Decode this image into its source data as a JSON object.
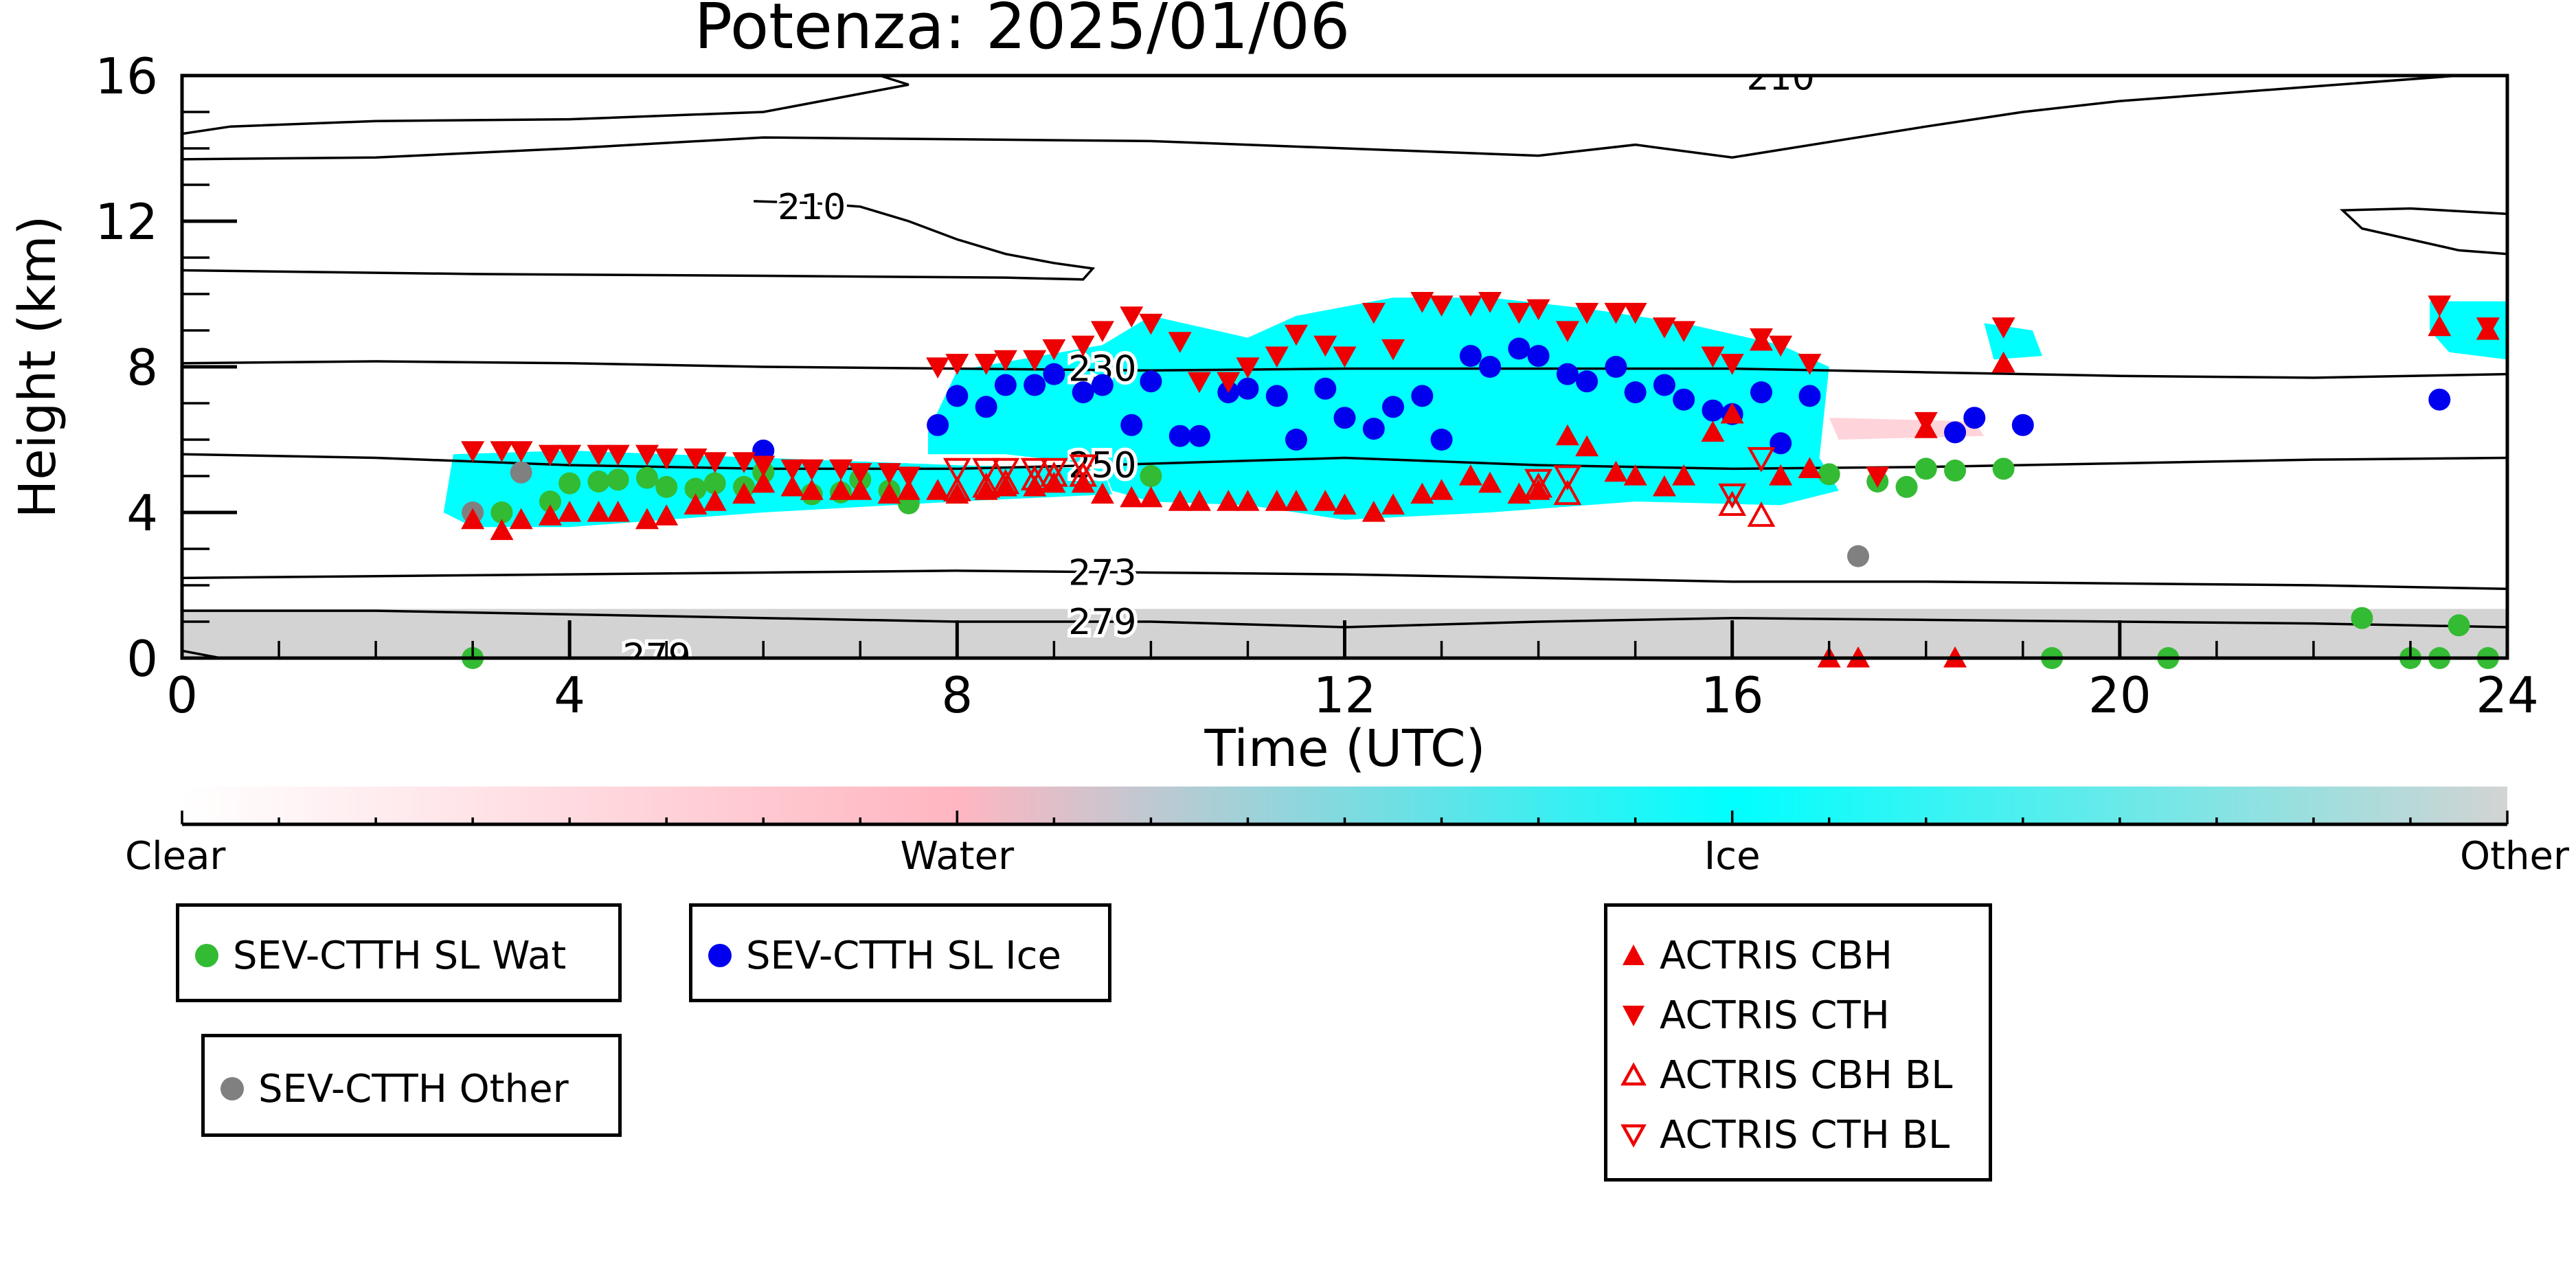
{
  "chart_data": {
    "type": "scatter",
    "title": "Potenza: 2025/01/06",
    "xlabel": "Time (UTC)",
    "ylabel": "Height (km)",
    "xlim": [
      0,
      24
    ],
    "ylim": [
      0,
      16
    ],
    "x_ticks": [
      0,
      4,
      8,
      12,
      16,
      20,
      24
    ],
    "y_ticks": [
      0,
      4,
      8,
      12,
      16
    ],
    "x_tick_labels": [
      "0",
      "4",
      "8",
      "12",
      "16",
      "20",
      "24"
    ],
    "y_tick_labels": [
      "0",
      "4",
      "8",
      "12",
      "16"
    ],
    "colorbar": {
      "labels": [
        "Clear",
        "Water",
        "Ice",
        "Other"
      ],
      "colors": [
        "#ffffff",
        "#ffb6c1",
        "#00ffff",
        "#d3d3d3"
      ]
    },
    "contours": [
      {
        "label": "210",
        "label_at": [
          16.5,
          15.95
        ],
        "points": [
          [
            0,
            14.4
          ],
          [
            0.5,
            14.6
          ],
          [
            2,
            14.75
          ],
          [
            4,
            14.8
          ],
          [
            6,
            15.0
          ],
          [
            7,
            15.5
          ],
          [
            7.5,
            15.75
          ],
          [
            7.2,
            16
          ]
        ]
      },
      {
        "label": "",
        "label_at": null,
        "points": [
          [
            0,
            13.7
          ],
          [
            2,
            13.75
          ],
          [
            4,
            14.0
          ],
          [
            6,
            14.3
          ],
          [
            8,
            14.25
          ],
          [
            10,
            14.2
          ],
          [
            12,
            14.0
          ],
          [
            14,
            13.8
          ],
          [
            15,
            14.1
          ],
          [
            16,
            13.75
          ],
          [
            18,
            14.6
          ],
          [
            19,
            15.0
          ],
          [
            20,
            15.3
          ],
          [
            22,
            15.7
          ],
          [
            23.5,
            16
          ]
        ]
      },
      {
        "label": "210",
        "label_at": [
          6.5,
          12.4
        ],
        "points": [
          [
            5.9,
            12.55
          ],
          [
            6.5,
            12.5
          ],
          [
            7,
            12.4
          ],
          [
            7.5,
            12.0
          ],
          [
            8,
            11.5
          ],
          [
            8.5,
            11.1
          ],
          [
            9,
            10.85
          ],
          [
            9.4,
            10.7
          ],
          [
            9.3,
            10.4
          ],
          [
            8.5,
            10.45
          ],
          [
            6,
            10.5
          ],
          [
            3,
            10.55
          ],
          [
            0,
            10.65
          ]
        ]
      },
      {
        "label": "",
        "label_at": null,
        "points": [
          [
            24,
            12.2
          ],
          [
            23,
            12.35
          ],
          [
            22.3,
            12.3
          ],
          [
            22.5,
            11.8
          ],
          [
            23.5,
            11.2
          ],
          [
            24,
            11.1
          ]
        ]
      },
      {
        "label": "230",
        "label_at": [
          9.5,
          7.95
        ],
        "points": [
          [
            0,
            8.1
          ],
          [
            2,
            8.15
          ],
          [
            4,
            8.1
          ],
          [
            6,
            8.0
          ],
          [
            8,
            7.95
          ],
          [
            10,
            7.9
          ],
          [
            12,
            7.95
          ],
          [
            14,
            7.95
          ],
          [
            16,
            7.95
          ],
          [
            18,
            7.85
          ],
          [
            20,
            7.75
          ],
          [
            22,
            7.7
          ],
          [
            24,
            7.8
          ]
        ]
      },
      {
        "label": "250",
        "label_at": [
          9.5,
          5.3
        ],
        "points": [
          [
            0,
            5.6
          ],
          [
            2,
            5.5
          ],
          [
            4,
            5.3
          ],
          [
            6,
            5.2
          ],
          [
            8,
            5.2
          ],
          [
            9.5,
            5.3
          ],
          [
            12,
            5.5
          ],
          [
            14,
            5.3
          ],
          [
            16,
            5.2
          ],
          [
            18,
            5.25
          ],
          [
            20,
            5.35
          ],
          [
            22,
            5.45
          ],
          [
            24,
            5.5
          ]
        ]
      },
      {
        "label": "273",
        "label_at": [
          9.5,
          2.35
        ],
        "points": [
          [
            0,
            2.2
          ],
          [
            2,
            2.25
          ],
          [
            4,
            2.3
          ],
          [
            6,
            2.35
          ],
          [
            8,
            2.4
          ],
          [
            10,
            2.35
          ],
          [
            12,
            2.3
          ],
          [
            14,
            2.2
          ],
          [
            16,
            2.1
          ],
          [
            18,
            2.1
          ],
          [
            20,
            2.05
          ],
          [
            22,
            2.0
          ],
          [
            24,
            1.9
          ]
        ]
      },
      {
        "label": "279",
        "label_at": [
          9.5,
          1.0
        ],
        "points": [
          [
            0,
            1.3
          ],
          [
            2,
            1.3
          ],
          [
            4,
            1.2
          ],
          [
            6,
            1.1
          ],
          [
            8,
            1.0
          ],
          [
            10,
            1.0
          ],
          [
            12,
            0.85
          ],
          [
            14,
            1.0
          ],
          [
            16,
            1.1
          ],
          [
            18,
            1.05
          ],
          [
            20,
            1.0
          ],
          [
            22,
            0.95
          ],
          [
            24,
            0.85
          ]
        ]
      },
      {
        "label": "279",
        "label_at": [
          4.9,
          0.05
        ],
        "points": [
          [
            0,
            0.2
          ],
          [
            0.2,
            0.1
          ],
          [
            0.4,
            0.0
          ]
        ]
      }
    ],
    "series": [
      {
        "name": "SEV-CTTH SL Wat",
        "marker": "circle",
        "color": "#33bb33",
        "x": [
          3.0,
          3.3,
          3.8,
          4.0,
          4.3,
          4.5,
          4.8,
          5.0,
          5.3,
          5.5,
          5.8,
          6.0,
          6.5,
          6.8,
          7.0,
          7.3,
          7.5,
          10.0,
          17.0,
          17.5,
          17.8,
          18.0,
          18.3,
          18.8,
          19.3,
          20.5,
          22.5,
          23.0,
          23.3,
          23.5,
          23.8
        ],
        "y": [
          0.0,
          4.0,
          4.3,
          4.8,
          4.85,
          4.9,
          4.95,
          4.7,
          4.65,
          4.8,
          4.7,
          5.1,
          4.5,
          4.55,
          4.9,
          4.6,
          4.25,
          5.0,
          5.05,
          4.85,
          4.7,
          5.2,
          5.15,
          5.2,
          0.0,
          0.0,
          1.1,
          0.0,
          0.0,
          0.9,
          0.0
        ]
      },
      {
        "name": "SEV-CTTH SL Ice",
        "marker": "circle",
        "color": "#0000ee",
        "x": [
          6.0,
          7.8,
          8.0,
          8.3,
          8.5,
          8.8,
          9.0,
          9.3,
          9.5,
          9.8,
          10.0,
          10.3,
          10.5,
          10.8,
          11.0,
          11.3,
          11.5,
          11.8,
          12.0,
          12.3,
          12.5,
          12.8,
          13.0,
          13.3,
          13.5,
          13.8,
          14.0,
          14.3,
          14.5,
          14.8,
          15.0,
          15.3,
          15.5,
          15.8,
          16.0,
          16.3,
          16.5,
          16.8,
          18.3,
          18.5,
          19.0,
          23.3
        ],
        "y": [
          5.7,
          6.4,
          7.2,
          6.9,
          7.5,
          7.5,
          7.8,
          7.3,
          7.5,
          6.4,
          7.6,
          6.1,
          6.1,
          7.3,
          7.4,
          7.2,
          6.0,
          7.4,
          6.6,
          6.3,
          6.9,
          7.2,
          6.0,
          8.3,
          8.0,
          8.5,
          8.3,
          7.8,
          7.6,
          8.0,
          7.3,
          7.5,
          7.1,
          6.8,
          6.7,
          7.3,
          5.9,
          7.2,
          6.2,
          6.6,
          6.4,
          7.1
        ]
      },
      {
        "name": "SEV-CTTH Other",
        "marker": "circle",
        "color": "#808080",
        "x": [
          3.0,
          3.5,
          17.3
        ],
        "y": [
          4.0,
          5.1,
          2.8
        ]
      },
      {
        "name": "ACTRIS CBH",
        "marker": "triangle-up",
        "color": "#ee0000",
        "filled": true,
        "x": [
          3.0,
          3.3,
          3.5,
          3.8,
          4.0,
          4.3,
          4.5,
          4.8,
          5.0,
          5.3,
          5.5,
          5.8,
          6.0,
          6.3,
          6.5,
          6.8,
          7.0,
          7.3,
          7.5,
          7.8,
          8.0,
          8.3,
          8.5,
          8.8,
          9.0,
          9.3,
          9.5,
          9.8,
          10.0,
          10.3,
          10.5,
          10.8,
          11.0,
          11.3,
          11.5,
          11.8,
          12.0,
          12.3,
          12.5,
          12.8,
          13.0,
          13.3,
          13.5,
          13.8,
          14.0,
          14.3,
          14.5,
          14.8,
          15.0,
          15.3,
          15.5,
          15.8,
          16.0,
          16.3,
          16.5,
          16.8,
          17.0,
          17.3,
          18.0,
          18.3,
          18.8,
          23.3,
          23.8
        ],
        "y": [
          3.8,
          3.5,
          3.8,
          3.9,
          4.0,
          4.0,
          4.0,
          3.8,
          3.9,
          4.2,
          4.3,
          4.5,
          4.8,
          4.7,
          4.6,
          4.6,
          4.6,
          4.5,
          4.6,
          4.6,
          4.5,
          4.6,
          4.7,
          4.7,
          4.8,
          4.8,
          4.5,
          4.4,
          4.4,
          4.3,
          4.3,
          4.3,
          4.3,
          4.3,
          4.3,
          4.3,
          4.2,
          4.0,
          4.2,
          4.5,
          4.6,
          5.0,
          4.8,
          4.5,
          4.6,
          6.1,
          5.8,
          5.1,
          5.0,
          4.7,
          5.0,
          6.2,
          6.7,
          8.7,
          5.0,
          5.2,
          0.0,
          0.0,
          6.3,
          0.0,
          8.1,
          9.1,
          9.0
        ]
      },
      {
        "name": "ACTRIS CTH",
        "marker": "triangle-down",
        "color": "#ee0000",
        "filled": true,
        "x": [
          3.0,
          3.3,
          3.5,
          3.8,
          4.0,
          4.3,
          4.5,
          4.8,
          5.0,
          5.3,
          5.5,
          5.8,
          6.0,
          6.3,
          6.5,
          6.8,
          7.0,
          7.3,
          7.5,
          7.8,
          8.0,
          8.3,
          8.5,
          8.8,
          9.0,
          9.3,
          9.5,
          9.8,
          10.0,
          10.3,
          10.5,
          10.8,
          11.0,
          11.3,
          11.5,
          11.8,
          12.0,
          12.3,
          12.5,
          12.8,
          13.0,
          13.3,
          13.5,
          13.8,
          14.0,
          14.3,
          14.5,
          14.8,
          15.0,
          15.3,
          15.5,
          15.8,
          16.0,
          16.3,
          16.5,
          16.8,
          17.5,
          18.0,
          18.8,
          23.3,
          23.8
        ],
        "y": [
          5.7,
          5.7,
          5.7,
          5.6,
          5.6,
          5.6,
          5.6,
          5.6,
          5.5,
          5.5,
          5.4,
          5.4,
          5.3,
          5.2,
          5.2,
          5.2,
          5.1,
          5.1,
          5.0,
          8.0,
          8.1,
          8.1,
          8.2,
          8.2,
          8.5,
          8.6,
          9.0,
          9.4,
          9.2,
          8.7,
          7.6,
          7.6,
          8.0,
          8.3,
          8.9,
          8.6,
          8.3,
          9.5,
          8.5,
          9.8,
          9.7,
          9.7,
          9.8,
          9.5,
          9.6,
          9.0,
          9.5,
          9.5,
          9.5,
          9.1,
          9.0,
          8.3,
          8.1,
          8.8,
          8.6,
          8.1,
          5.0,
          6.5,
          9.1,
          9.7,
          9.1
        ]
      },
      {
        "name": "ACTRIS CBH BL",
        "marker": "triangle-up",
        "color": "#ee0000",
        "filled": false,
        "x": [
          8.0,
          8.3,
          8.5,
          8.8,
          9.0,
          9.3,
          14.0,
          14.3,
          16.0,
          16.3
        ],
        "y": [
          4.6,
          4.7,
          4.8,
          4.9,
          5.0,
          5.0,
          4.7,
          4.5,
          4.2,
          3.9
        ]
      },
      {
        "name": "ACTRIS CTH BL",
        "marker": "triangle-down",
        "color": "#ee0000",
        "filled": false,
        "x": [
          8.0,
          8.3,
          8.5,
          8.8,
          9.0,
          9.3,
          14.0,
          14.3,
          16.0,
          16.3
        ],
        "y": [
          5.2,
          5.2,
          5.2,
          5.2,
          5.2,
          5.3,
          4.9,
          5.0,
          4.5,
          5.5
        ]
      }
    ],
    "legend": {
      "groups": [
        [
          "SEV-CTTH SL Wat"
        ],
        [
          "SEV-CTTH SL Ice"
        ],
        [
          "SEV-CTTH Other"
        ],
        [
          "ACTRIS CBH",
          "ACTRIS CTH",
          "ACTRIS CBH BL",
          "ACTRIS CTH BL"
        ]
      ]
    }
  }
}
